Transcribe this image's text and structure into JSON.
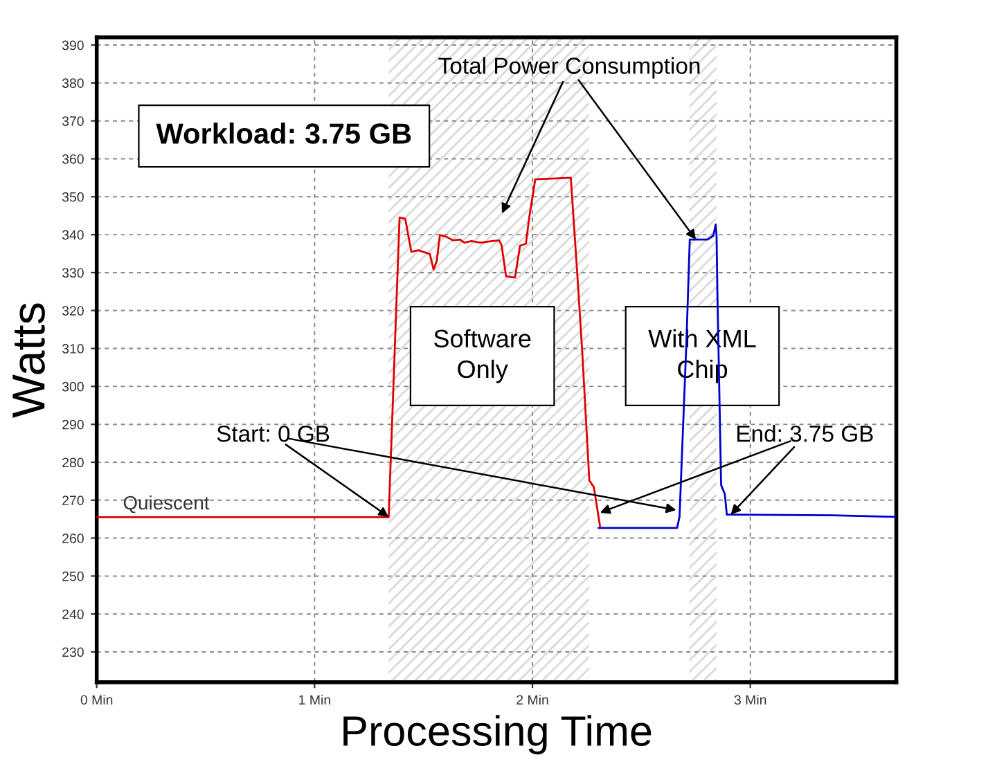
{
  "chart_data": {
    "type": "line",
    "xlabel": "Processing Time",
    "ylabel": "Watts",
    "xlim": [
      0,
      3.67
    ],
    "ylim": [
      222,
      392
    ],
    "xticks": [
      {
        "value": 0,
        "label": "0 Min"
      },
      {
        "value": 1,
        "label": "1 Min"
      },
      {
        "value": 2,
        "label": "2 Min"
      },
      {
        "value": 3,
        "label": "3 Min"
      }
    ],
    "yticks": [
      230,
      240,
      250,
      260,
      270,
      280,
      290,
      300,
      310,
      320,
      330,
      340,
      350,
      360,
      370,
      380,
      390
    ],
    "grid": true,
    "marker": "none",
    "line_style": "solid",
    "series": [
      {
        "color": "#e00000",
        "x": [
          0,
          1.34,
          1.39,
          1.416,
          1.444,
          1.476,
          1.529,
          1.546,
          1.561,
          1.575,
          1.603,
          1.635,
          1.667,
          1.688,
          1.72,
          1.762,
          1.815,
          1.847,
          1.858,
          1.879,
          1.92,
          1.943,
          1.97,
          1.985,
          2.013,
          2.176,
          2.208,
          2.229,
          2.261,
          2.282,
          2.31
        ],
        "values": [
          265.5,
          265.5,
          344.5,
          344.2,
          335.5,
          335.9,
          334.9,
          330.8,
          333.1,
          339.9,
          339.5,
          338.5,
          338.7,
          337.9,
          338.3,
          337.9,
          338.3,
          338.5,
          337.3,
          329,
          328.7,
          337.1,
          337.6,
          344.5,
          354.6,
          355,
          327.7,
          308.6,
          275.2,
          273.4,
          263.2
        ]
      },
      {
        "color": "#0000cc",
        "x": [
          2.304,
          2.664,
          2.675,
          2.707,
          2.722,
          2.803,
          2.83,
          2.841,
          2.845,
          2.849,
          2.866,
          2.883,
          2.892,
          2.909,
          3.376,
          3.67
        ],
        "values": [
          262.7,
          262.7,
          265.6,
          312.2,
          338.7,
          338.7,
          339.7,
          342.7,
          339.7,
          324.2,
          274,
          271.6,
          266.2,
          266.2,
          266,
          265.6
        ]
      }
    ],
    "bands": [
      {
        "axis": "x",
        "from": 1.34,
        "to": 2.26,
        "color": "#d9d9d9"
      },
      {
        "axis": "x",
        "from": 2.72,
        "to": 2.845,
        "color": "#d9d9d9"
      }
    ],
    "annotations": [
      "Workload: 3.75 GB",
      "Software Only",
      "With XML Chip",
      {
        "text": "Quiescent",
        "x": 0.12,
        "y": 265.5
      },
      {
        "text": "Total Power Consumption",
        "x": 2.75,
        "y": 338.7
      },
      {
        "text": "Start: 0 GB",
        "x": 1.34,
        "y": 265.6
      },
      {
        "text": "End: 3.75 GB",
        "x": 2.91,
        "y": 266.2
      }
    ]
  }
}
